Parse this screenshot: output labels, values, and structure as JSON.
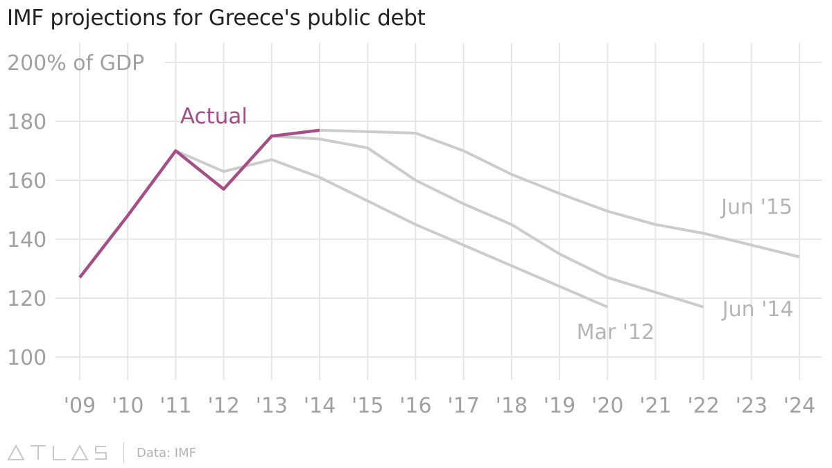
{
  "title": "IMF projections for Greece's public debt",
  "source": "Data: IMF",
  "brand": "ATLAS",
  "colors": {
    "actual": "#a44f88",
    "projection": "#cccccc",
    "grid": "#e6e6e6",
    "tick_text": "#a0a0a0",
    "label_text": "#b5b5b5",
    "title_text": "#222222"
  },
  "chart_data": {
    "type": "line",
    "ylabel_unit": "% of GDP",
    "ylim": [
      100,
      200
    ],
    "yticks": [
      100,
      120,
      140,
      160,
      180,
      200
    ],
    "ytick_labels": [
      "100",
      "120",
      "140",
      "160",
      "180",
      "200% of GDP"
    ],
    "x_range": [
      2009,
      2024
    ],
    "xticks": [
      2009,
      2010,
      2011,
      2012,
      2013,
      2014,
      2015,
      2016,
      2017,
      2018,
      2019,
      2020,
      2021,
      2022,
      2023,
      2024
    ],
    "xtick_labels": [
      "'09",
      "'10",
      "'11",
      "'12",
      "'13",
      "'14",
      "'15",
      "'16",
      "'17",
      "'18",
      "'19",
      "'20",
      "'21",
      "'22",
      "'23",
      "'24"
    ],
    "grid": true,
    "series": [
      {
        "name": "Mar '12",
        "color": "#cccccc",
        "x": [
          2011,
          2012,
          2013,
          2014,
          2015,
          2016,
          2017,
          2018,
          2019,
          2020
        ],
        "y": [
          170,
          163,
          167,
          161,
          153,
          145,
          138,
          131,
          124,
          117
        ]
      },
      {
        "name": "Jun '14",
        "color": "#cccccc",
        "x": [
          2013,
          2014,
          2015,
          2016,
          2017,
          2018,
          2019,
          2020,
          2021,
          2022
        ],
        "y": [
          175,
          174,
          171,
          160,
          152,
          145,
          135,
          127,
          122,
          117
        ]
      },
      {
        "name": "Jun '15",
        "color": "#cccccc",
        "x": [
          2014,
          2015,
          2016,
          2017,
          2018,
          2019,
          2020,
          2021,
          2022,
          2023,
          2024
        ],
        "y": [
          177,
          176.5,
          176,
          170,
          162,
          155.5,
          149.5,
          145,
          142,
          138,
          134
        ]
      },
      {
        "name": "Actual",
        "color": "#a44f88",
        "x": [
          2009,
          2010,
          2011,
          2012,
          2013,
          2014
        ],
        "y": [
          127,
          148,
          170,
          157,
          175,
          177
        ]
      }
    ]
  }
}
